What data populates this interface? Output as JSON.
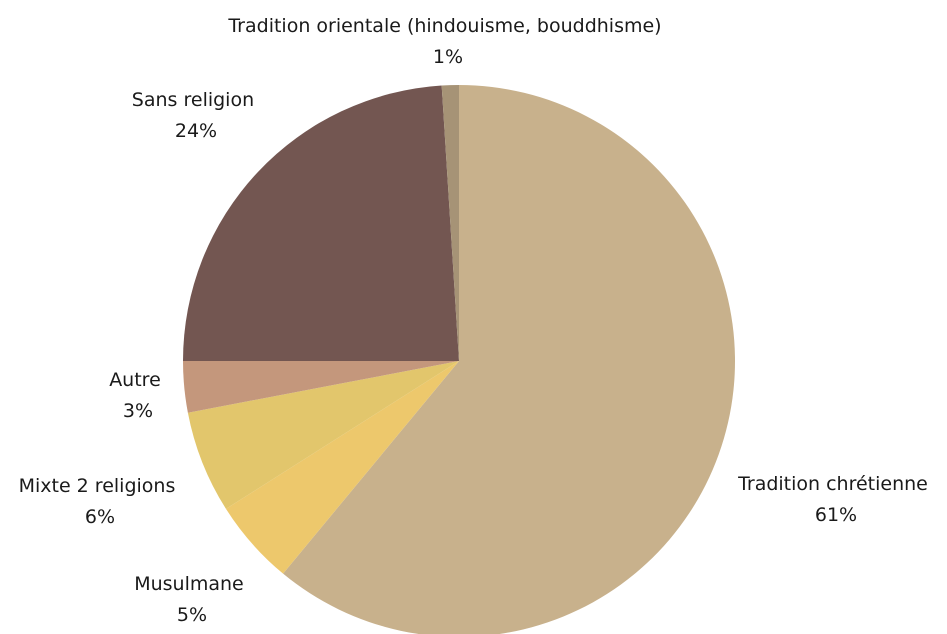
{
  "chart_data": {
    "type": "pie",
    "title": "",
    "start_angle_deg": 0,
    "direction": "clockwise",
    "slices": [
      {
        "label": "Tradition chrétienne",
        "value": 61,
        "value_label": "61%",
        "color": "#C8B18C"
      },
      {
        "label": "Musulmane",
        "value": 5,
        "value_label": "5%",
        "color": "#EDC86C"
      },
      {
        "label": "Mixte 2 religions",
        "value": 6,
        "value_label": "6%",
        "color": "#E2C66C"
      },
      {
        "label": "Autre",
        "value": 3,
        "value_label": "3%",
        "color": "#C4977C"
      },
      {
        "label": "Sans religion",
        "value": 24,
        "value_label": "24%",
        "color": "#735651"
      },
      {
        "label": "Tradition orientale (hindouisme, bouddhisme)",
        "value": 1,
        "value_label": "1%",
        "color": "#A69376"
      }
    ]
  }
}
